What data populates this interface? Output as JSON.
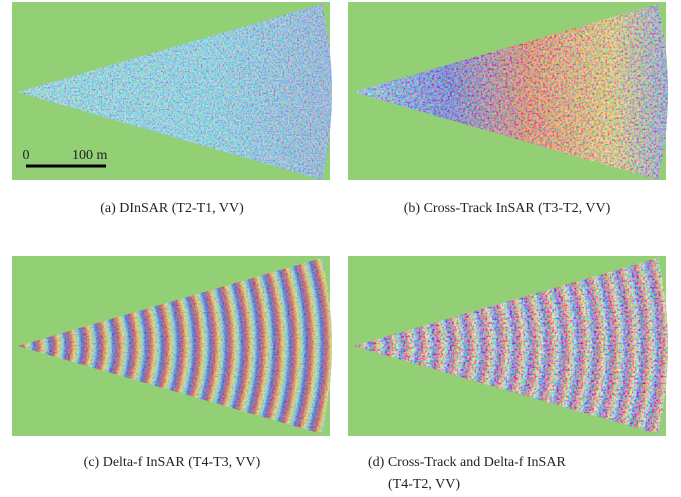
{
  "panels": [
    {
      "caption": [
        "(a) DInSAR (T2-T1, VV)"
      ]
    },
    {
      "caption": [
        "(b) Cross-Track InSAR (T3-T2, VV)"
      ]
    },
    {
      "caption": [
        "(c) Delta-f InSAR (T4-T3, VV)"
      ]
    },
    {
      "caption": [
        "(d) Cross-Track and Delta-f InSAR",
        "(T4-T2, VV)"
      ]
    }
  ],
  "scale_bar": {
    "start": "0",
    "end": "100 m"
  }
}
